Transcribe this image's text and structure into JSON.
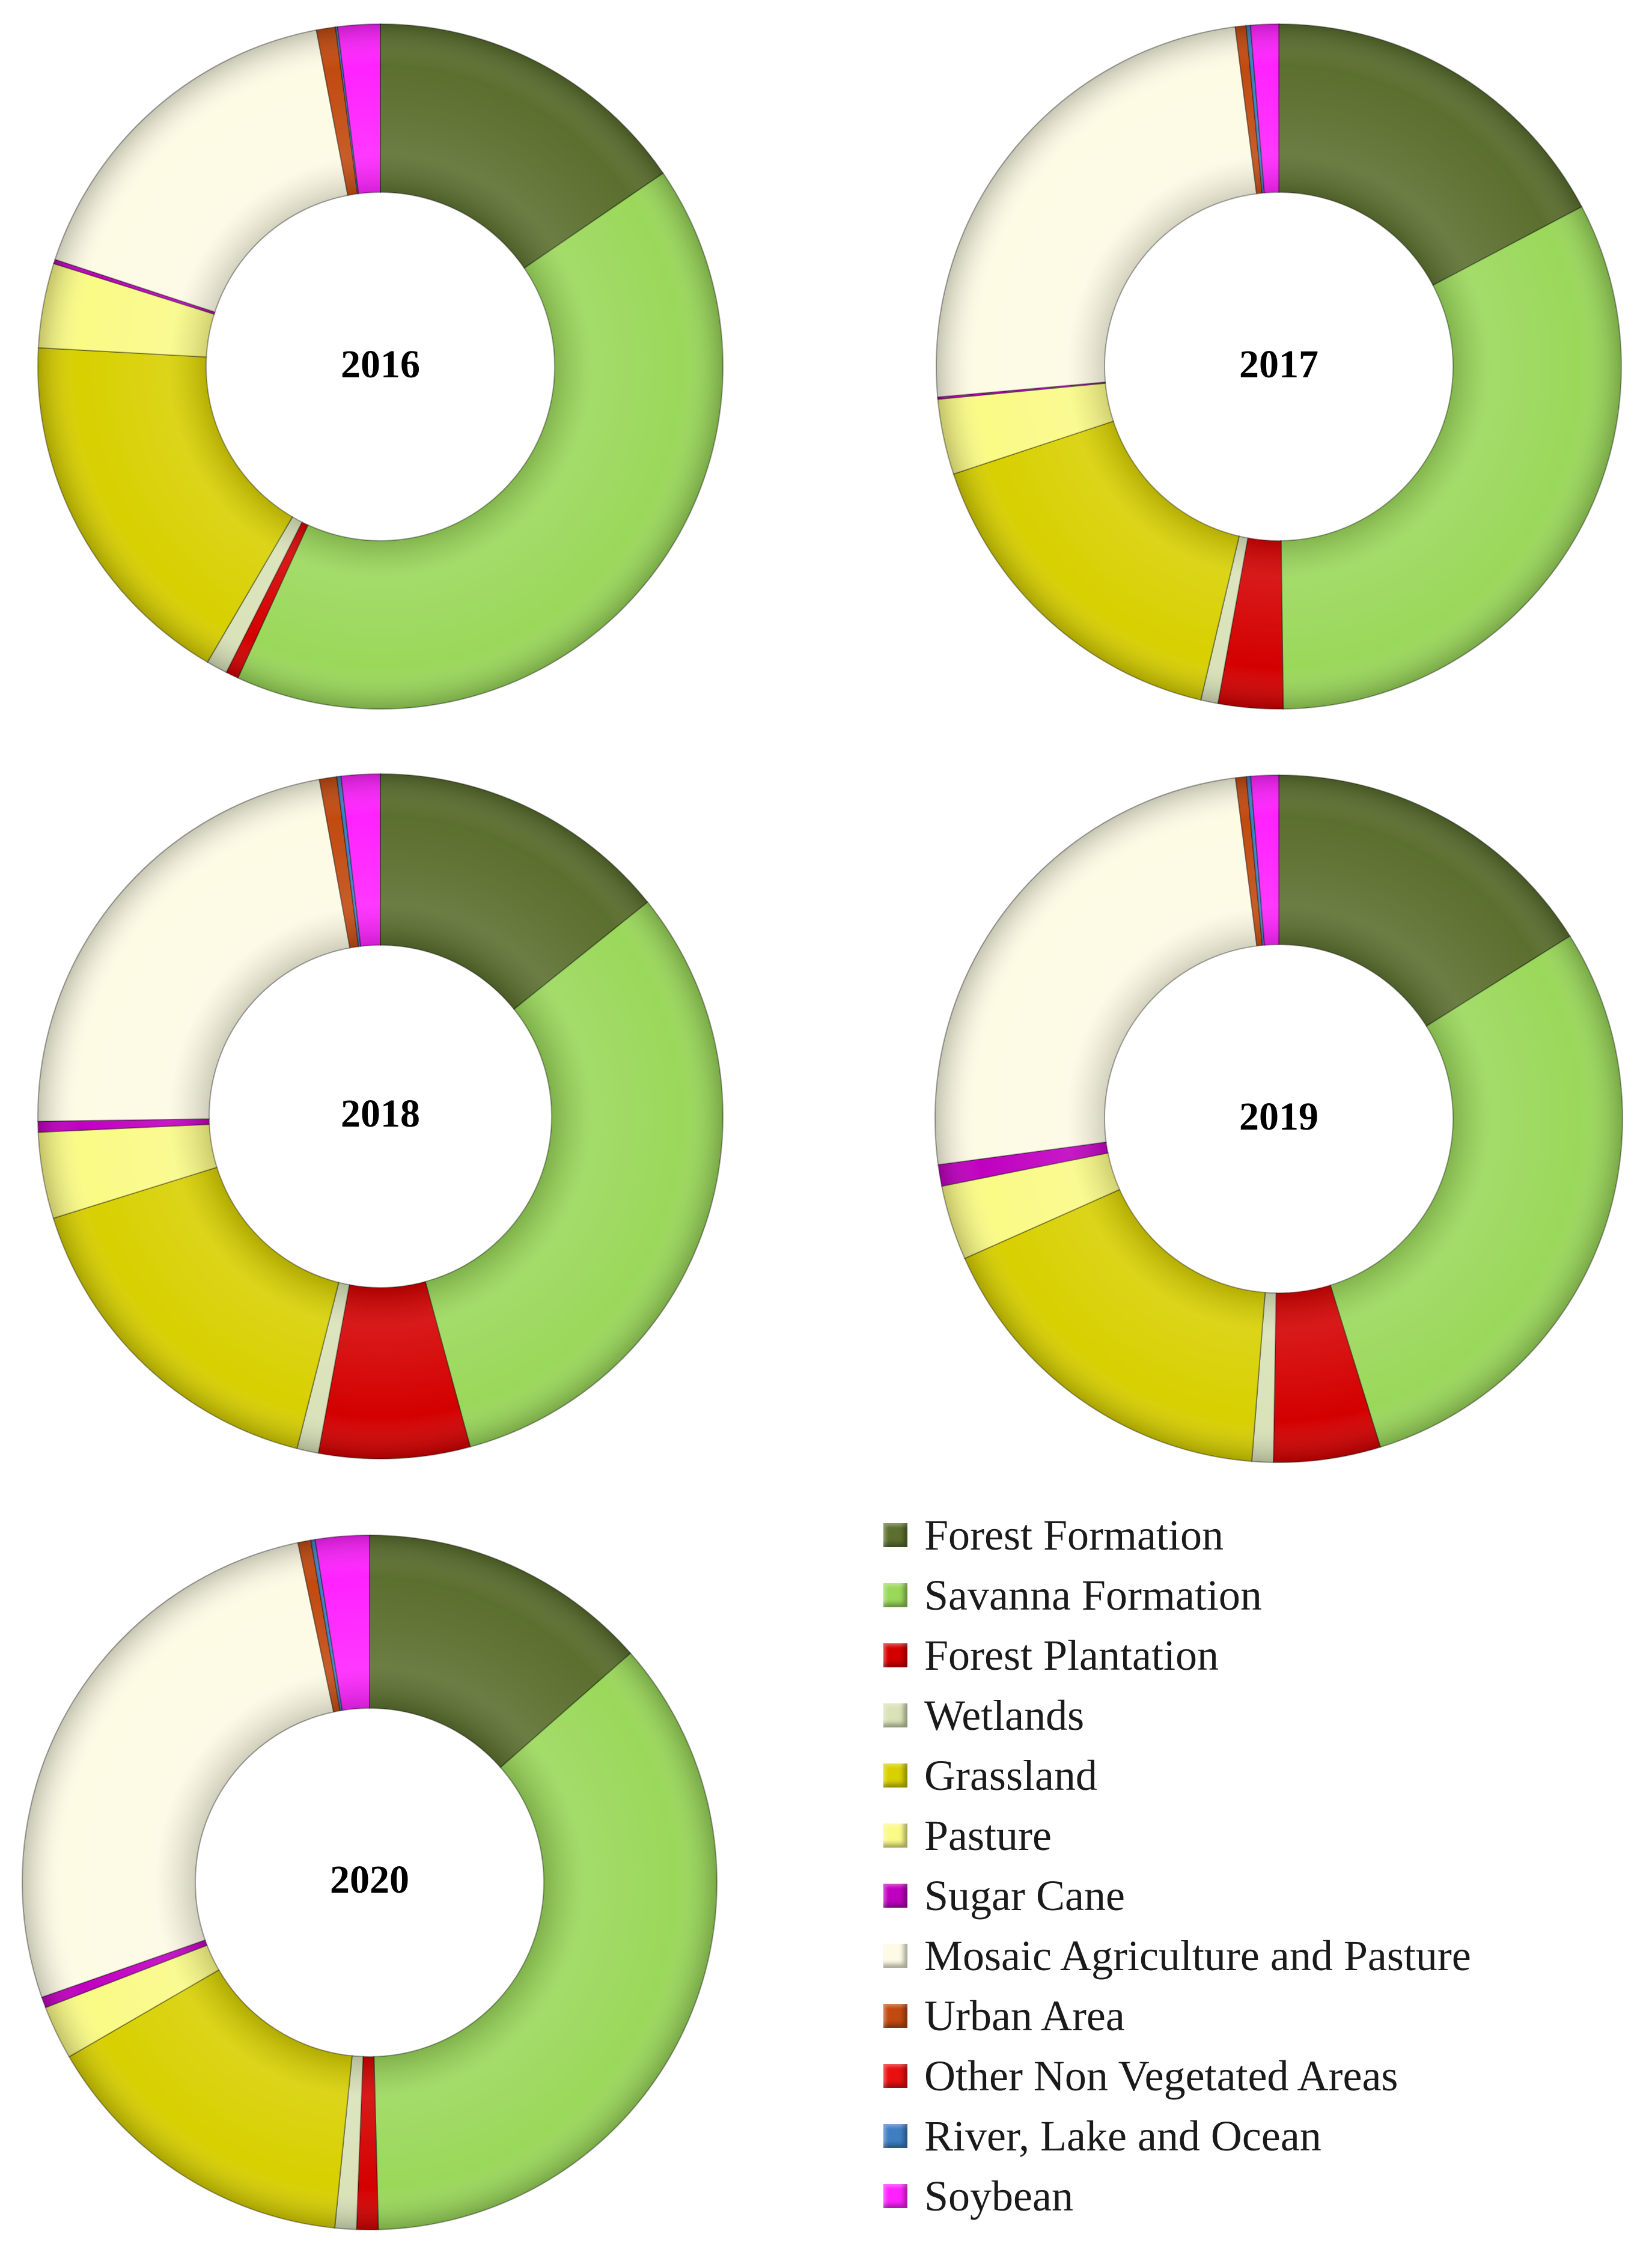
{
  "categories": [
    {
      "name": "Forest Formation",
      "color": "#5b6f2e"
    },
    {
      "name": "Savanna Formation",
      "color": "#9ad85a"
    },
    {
      "name": "Forest Plantation",
      "color": "#d40000"
    },
    {
      "name": "Wetlands",
      "color": "#d9e2b8"
    },
    {
      "name": "Grassland",
      "color": "#d8d000"
    },
    {
      "name": "Pasture",
      "color": "#fafa86"
    },
    {
      "name": "Sugar Cane",
      "color": "#c000c0"
    },
    {
      "name": "Mosaic Agriculture and Pasture",
      "color": "#fdfbe4"
    },
    {
      "name": "Urban Area",
      "color": "#c24a10"
    },
    {
      "name": "Other Non Vegetated Areas",
      "color": "#e81010"
    },
    {
      "name": "River, Lake and Ocean",
      "color": "#3e7fc4"
    },
    {
      "name": "Soybean",
      "color": "#ff22ff"
    }
  ],
  "chart_data": [
    {
      "type": "pie",
      "title": "2016",
      "categories": [
        "Forest Formation",
        "Savanna Formation",
        "Forest Plantation",
        "Wetlands",
        "Grassland",
        "Pasture",
        "Sugar Cane",
        "Mosaic Agriculture and Pasture",
        "Urban Area",
        "Other Non Vegetated Areas",
        "River, Lake and Ocean",
        "Soybean"
      ],
      "values": [
        15.5,
        41.5,
        0.6,
        1.0,
        17.5,
        4.0,
        0.2,
        17.0,
        0.9,
        0.0,
        0.1,
        2.0
      ]
    },
    {
      "type": "pie",
      "title": "2017",
      "categories": [
        "Forest Formation",
        "Savanna Formation",
        "Forest Plantation",
        "Wetlands",
        "Grassland",
        "Pasture",
        "Sugar Cane",
        "Mosaic Agriculture and Pasture",
        "Urban Area",
        "Other Non Vegetated Areas",
        "River, Lake and Ocean",
        "Soybean"
      ],
      "values": [
        17.0,
        32.0,
        3.0,
        0.8,
        16.0,
        3.5,
        0.1,
        24.0,
        0.5,
        0.0,
        0.2,
        1.3
      ]
    },
    {
      "type": "pie",
      "title": "2018",
      "categories": [
        "Forest Formation",
        "Savanna Formation",
        "Forest Plantation",
        "Wetlands",
        "Grassland",
        "Pasture",
        "Sugar Cane",
        "Mosaic Agriculture and Pasture",
        "Urban Area",
        "Other Non Vegetated Areas",
        "River, Lake and Ocean",
        "Soybean"
      ],
      "values": [
        14.0,
        31.0,
        7.0,
        1.0,
        16.0,
        4.0,
        0.5,
        22.0,
        0.8,
        0.0,
        0.2,
        1.8
      ]
    },
    {
      "type": "pie",
      "title": "2019",
      "categories": [
        "Forest Formation",
        "Savanna Formation",
        "Forest Plantation",
        "Wetlands",
        "Grassland",
        "Pasture",
        "Sugar Cane",
        "Mosaic Agriculture and Pasture",
        "Urban Area",
        "Other Non Vegetated Areas",
        "River, Lake and Ocean",
        "Soybean"
      ],
      "values": [
        16.0,
        29.0,
        5.0,
        1.0,
        17.0,
        3.5,
        1.0,
        25.0,
        0.5,
        0.0,
        0.2,
        1.3
      ]
    },
    {
      "type": "pie",
      "title": "2020",
      "categories": [
        "Forest Formation",
        "Savanna Formation",
        "Forest Plantation",
        "Wetlands",
        "Grassland",
        "Pasture",
        "Sugar Cane",
        "Mosaic Agriculture and Pasture",
        "Urban Area",
        "Other Non Vegetated Areas",
        "River, Lake and Ocean",
        "Soybean"
      ],
      "values": [
        13.5,
        36.0,
        1.0,
        1.0,
        15.0,
        2.5,
        0.5,
        27.0,
        0.6,
        0.0,
        0.2,
        2.5
      ]
    }
  ]
}
